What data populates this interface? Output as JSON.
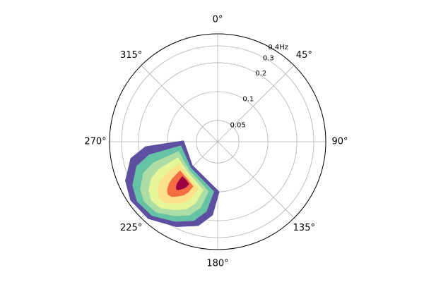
{
  "chart_data": {
    "type": "polar-contour",
    "theta_zero": "N",
    "theta_direction": "clockwise",
    "rscale": "log",
    "grid": true,
    "rlim": [
      0.03,
      0.4
    ],
    "rticks": [
      0.05,
      0.1,
      0.2,
      0.3,
      {
        "value": 0.4,
        "label": "0.4Hz"
      }
    ],
    "thetaticks": [
      {
        "value": 0,
        "label": "0°"
      },
      {
        "value": 45,
        "label": "45°"
      },
      {
        "value": 90,
        "label": "90°"
      },
      {
        "value": 135,
        "label": "135°"
      },
      {
        "value": 180,
        "label": "180°"
      },
      {
        "value": 225,
        "label": "225°"
      },
      {
        "value": 270,
        "label": "270°"
      },
      {
        "value": 315,
        "label": "315°"
      }
    ],
    "contours": [
      {
        "color": "#5e4fa2",
        "theta": [
          271.5,
          266,
          259,
          247,
          236,
          222,
          206,
          193,
          184,
          178.4,
          227
        ],
        "r": [
          0.068,
          0.17,
          0.25,
          0.33,
          0.37,
          0.36,
          0.29,
          0.237,
          0.175,
          0.1,
          0.069
        ]
      },
      {
        "color": "#66c2a5",
        "theta": [
          263.6,
          259,
          253,
          242.8,
          233.5,
          221.6,
          208,
          196.9,
          189.3,
          184.5,
          225.8
        ],
        "r": [
          0.073,
          0.16,
          0.228,
          0.296,
          0.33,
          0.321,
          0.262,
          0.217,
          0.164,
          0.1,
          0.074
        ]
      },
      {
        "color": "#abdda4",
        "theta": [
          255.8,
          251.9,
          247,
          238.6,
          230.9,
          221.1,
          209.9,
          200.8,
          194.5,
          190.6,
          224.6
        ],
        "r": [
          0.079,
          0.15,
          0.206,
          0.262,
          0.29,
          0.283,
          0.234,
          0.197,
          0.153,
          0.101,
          0.079
        ]
      },
      {
        "color": "#e6f598",
        "theta": [
          247.9,
          244.9,
          241,
          234.4,
          228.4,
          220.7,
          211.9,
          204.7,
          199.8,
          196.7,
          223.4
        ],
        "r": [
          0.084,
          0.14,
          0.184,
          0.228,
          0.25,
          0.244,
          0.206,
          0.177,
          0.143,
          0.101,
          0.084
        ]
      },
      {
        "color": "#fee08b",
        "theta": [
          240,
          237.8,
          235,
          230.2,
          225.8,
          220.2,
          213.8,
          208.6,
          205,
          202.8,
          222.2
        ],
        "r": [
          0.089,
          0.13,
          0.162,
          0.194,
          0.21,
          0.206,
          0.178,
          0.157,
          0.132,
          0.102,
          0.089
        ]
      },
      {
        "color": "#f46d43",
        "theta": [
          232.1,
          230.8,
          229,
          226,
          223.3,
          219.8,
          215.8,
          212.5,
          210.3,
          208.9,
          221
        ],
        "r": [
          0.094,
          0.12,
          0.14,
          0.16,
          0.17,
          0.167,
          0.15,
          0.137,
          0.121,
          0.102,
          0.095
        ]
      },
      {
        "color": "#9e0142",
        "theta": [
          225.3,
          224.6,
          223.8,
          222.4,
          221,
          219.4,
          217.4,
          215.9,
          214.8,
          214.1,
          220
        ],
        "r": [
          0.099,
          0.111,
          0.121,
          0.13,
          0.135,
          0.134,
          0.125,
          0.119,
          0.112,
          0.103,
          0.099
        ]
      }
    ]
  }
}
